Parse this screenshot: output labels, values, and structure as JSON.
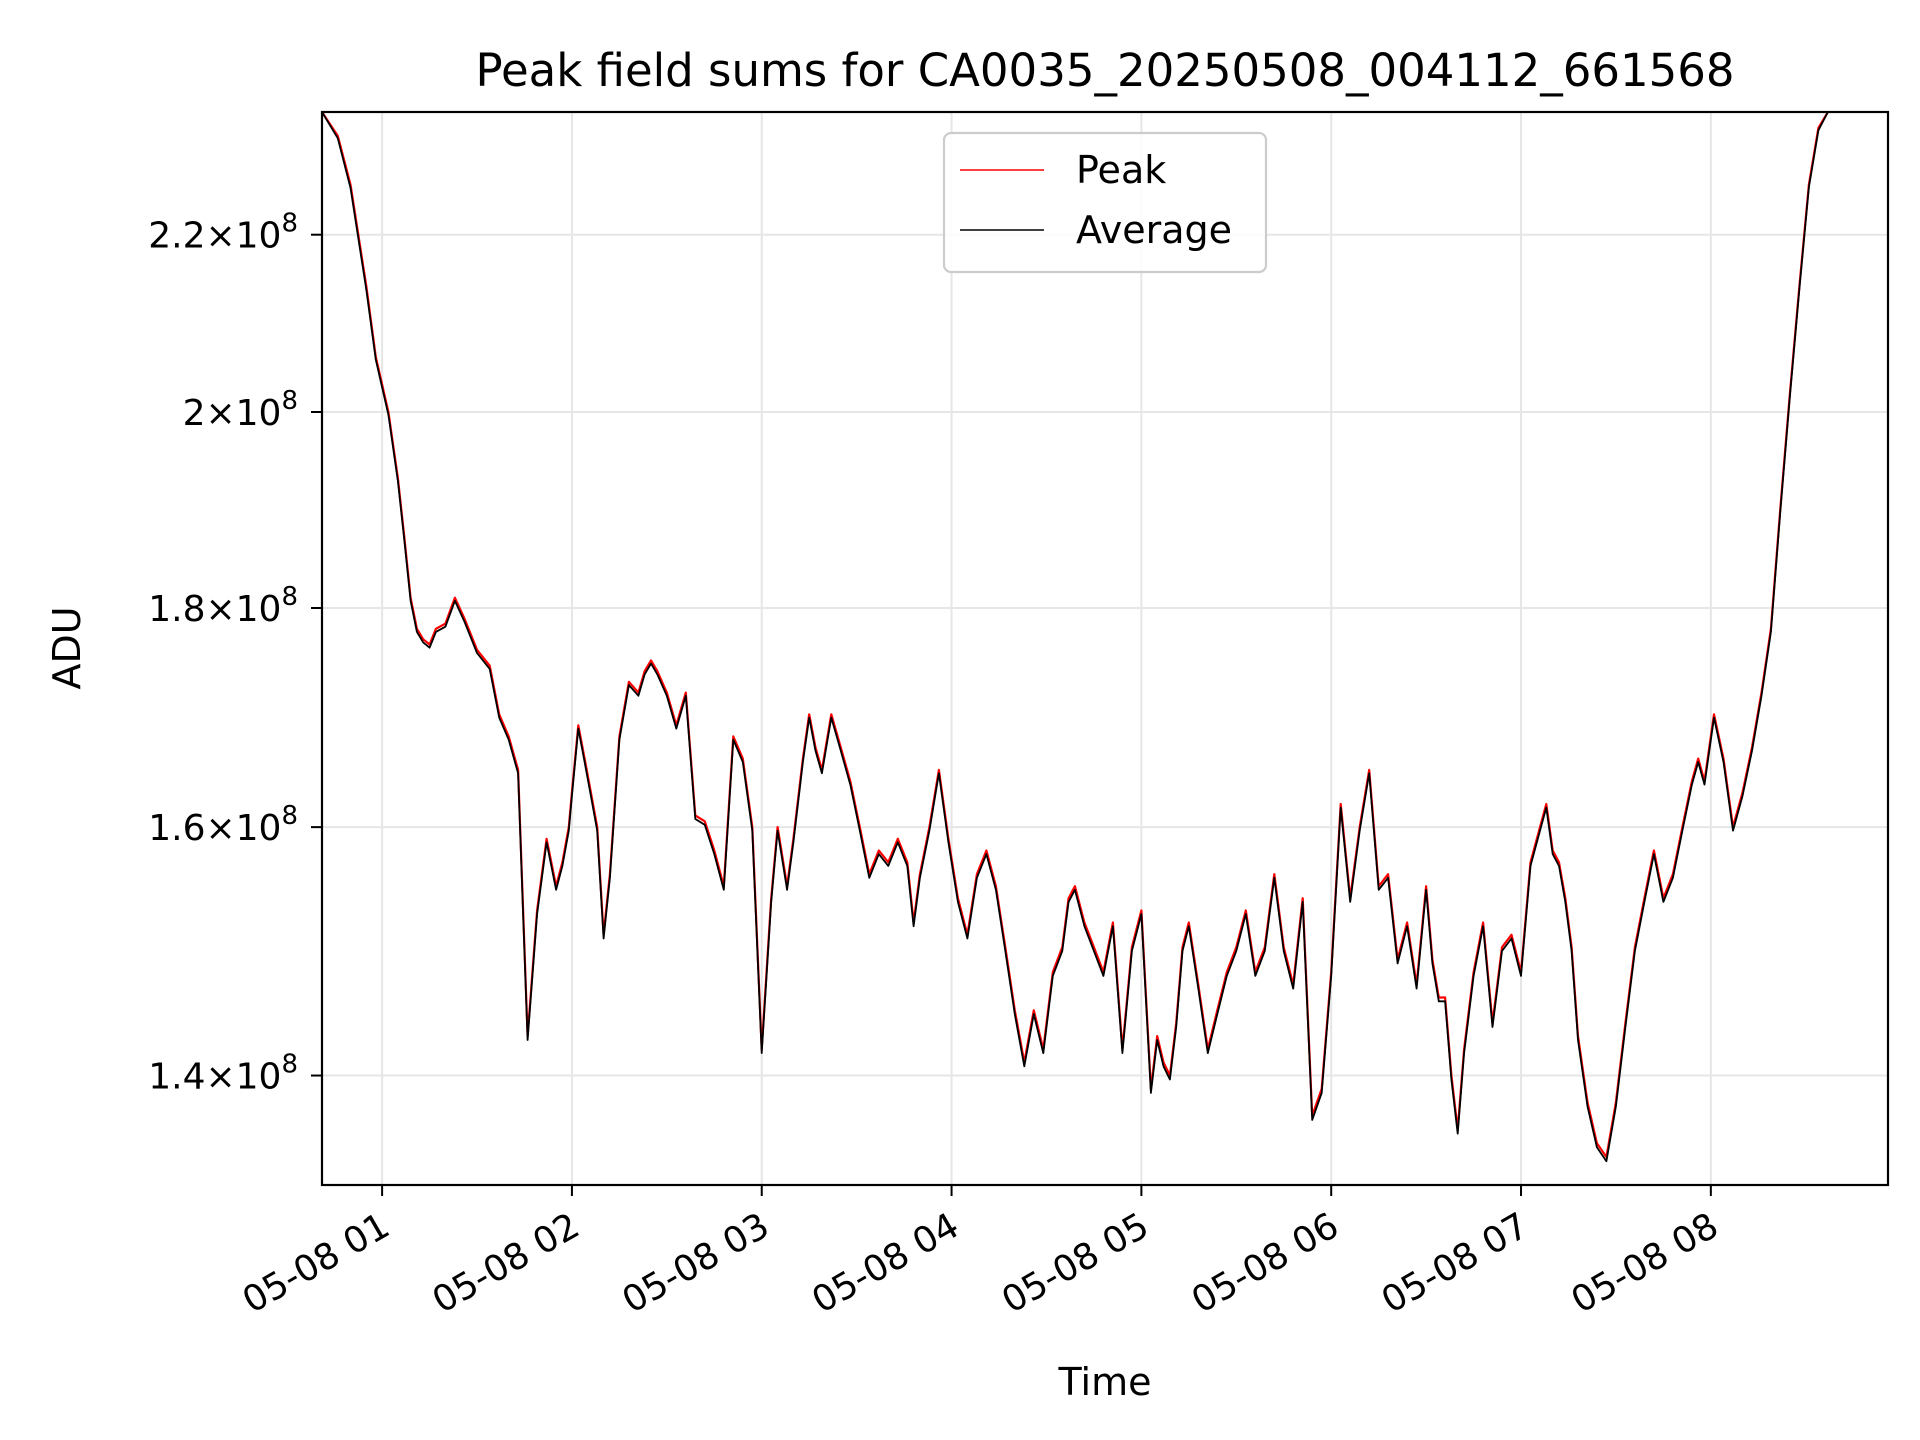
{
  "chart_data": {
    "type": "line",
    "title": "Peak field sums for CA0035_20250508_004112_661568",
    "xlabel": "Time",
    "ylabel": "ADU",
    "x_axis_type": "time",
    "x_range": [
      "2025-05-08 00:41",
      "2025-05-08 08:56"
    ],
    "y_scale": "log",
    "ylim": [
      132000000,
      235000000
    ],
    "grid": true,
    "legend_position": "upper center",
    "colors": {
      "Peak": "#ff0000",
      "Average": "#000000"
    },
    "x_ticks": [
      "05-08 01",
      "05-08 02",
      "05-08 03",
      "05-08 04",
      "05-08 05",
      "05-08 06",
      "05-08 07",
      "05-08 08"
    ],
    "y_ticks": [
      {
        "value": 140000000,
        "mantissa": "1.4",
        "exponent": "8"
      },
      {
        "value": 160000000,
        "mantissa": "1.6",
        "exponent": "8"
      },
      {
        "value": 180000000,
        "mantissa": "1.8",
        "exponent": "8"
      },
      {
        "value": 200000000,
        "mantissa": "2",
        "exponent": "8"
      },
      {
        "value": 220000000,
        "mantissa": "2.2",
        "exponent": "8"
      }
    ],
    "series": [
      {
        "name": "Peak",
        "color": "#ff0000"
      },
      {
        "name": "Average",
        "color": "#000000"
      }
    ],
    "x": [
      "00:41",
      "00:46",
      "00:50",
      "00:55",
      "00:58",
      "01:02",
      "01:05",
      "01:07",
      "01:09",
      "01:11",
      "01:13",
      "01:15",
      "01:17",
      "01:20",
      "01:23",
      "01:26",
      "01:30",
      "01:34",
      "01:37",
      "01:40",
      "01:43",
      "01:46",
      "01:49",
      "01:52",
      "01:55",
      "01:57",
      "01:59",
      "02:00",
      "02:02",
      "02:04",
      "02:06",
      "02:08",
      "02:10",
      "02:12",
      "02:15",
      "02:18",
      "02:21",
      "02:23",
      "02:25",
      "02:27",
      "02:30",
      "02:33",
      "02:36",
      "02:39",
      "02:42",
      "02:45",
      "02:48",
      "02:51",
      "02:54",
      "02:57",
      "03:00",
      "03:03",
      "03:05",
      "03:08",
      "03:10",
      "03:13",
      "03:15",
      "03:17",
      "03:19",
      "03:22",
      "03:25",
      "03:28",
      "03:31",
      "03:34",
      "03:37",
      "03:40",
      "03:43",
      "03:46",
      "03:48",
      "03:50",
      "03:53",
      "03:56",
      "03:59",
      "04:02",
      "04:05",
      "04:08",
      "04:11",
      "04:14",
      "04:17",
      "04:20",
      "04:23",
      "04:26",
      "04:29",
      "04:32",
      "04:35",
      "04:37",
      "04:39",
      "04:42",
      "04:45",
      "04:48",
      "04:51",
      "04:54",
      "04:57",
      "05:00",
      "05:03",
      "05:05",
      "05:07",
      "05:09",
      "05:11",
      "05:13",
      "05:15",
      "05:18",
      "05:21",
      "05:24",
      "05:27",
      "05:30",
      "05:33",
      "05:36",
      "05:39",
      "05:42",
      "05:45",
      "05:48",
      "05:51",
      "05:54",
      "05:57",
      "06:00",
      "06:03",
      "06:06",
      "06:09",
      "06:12",
      "06:15",
      "06:18",
      "06:21",
      "06:24",
      "06:27",
      "06:30",
      "06:32",
      "06:34",
      "06:36",
      "06:38",
      "06:40",
      "06:42",
      "06:45",
      "06:48",
      "06:51",
      "06:54",
      "06:57",
      "07:00",
      "07:03",
      "07:06",
      "07:08",
      "07:10",
      "07:12",
      "07:14",
      "07:16",
      "07:18",
      "07:21",
      "07:24",
      "07:27",
      "07:30",
      "07:33",
      "07:36",
      "07:39",
      "07:42",
      "07:45",
      "07:48",
      "07:51",
      "07:54",
      "07:56",
      "07:58",
      "08:01",
      "08:04",
      "08:07",
      "08:10",
      "08:13",
      "08:16",
      "08:19",
      "08:22",
      "08:25",
      "08:28",
      "08:31",
      "08:34",
      "08:37",
      "08:40",
      "08:43",
      "08:46",
      "08:48",
      "08:50",
      "08:52",
      "08:54",
      "08:56"
    ],
    "peak": [
      235000000,
      232000000,
      226000000,
      214000000,
      206000000,
      200000000,
      193000000,
      187000000,
      181000000,
      178000000,
      177000000,
      176500000,
      178000000,
      178500000,
      181000000,
      179000000,
      176000000,
      174500000,
      170000000,
      168000000,
      165000000,
      143000000,
      153000000,
      159000000,
      155000000,
      157000000,
      160000000,
      163000000,
      169000000,
      166000000,
      163000000,
      160000000,
      151000000,
      156000000,
      168000000,
      173000000,
      172000000,
      174000000,
      175000000,
      174000000,
      172000000,
      169000000,
      172000000,
      161000000,
      160500000,
      158000000,
      155000000,
      168000000,
      166000000,
      160000000,
      142000000,
      154000000,
      160000000,
      155000000,
      159000000,
      166000000,
      170000000,
      167000000,
      165000000,
      170000000,
      167000000,
      164000000,
      160000000,
      156000000,
      158000000,
      157000000,
      159000000,
      157000000,
      152000000,
      156000000,
      160000000,
      165000000,
      159000000,
      154000000,
      151000000,
      156000000,
      158000000,
      155000000,
      150000000,
      145000000,
      141000000,
      145000000,
      142000000,
      148000000,
      150000000,
      154000000,
      155000000,
      152000000,
      150000000,
      148000000,
      152000000,
      142000000,
      150000000,
      153000000,
      139000000,
      143000000,
      141000000,
      140000000,
      144000000,
      150000000,
      152000000,
      147000000,
      142000000,
      145000000,
      148000000,
      150000000,
      153000000,
      148000000,
      150000000,
      156000000,
      150000000,
      147000000,
      154000000,
      137000000,
      139000000,
      148000000,
      162000000,
      154000000,
      160000000,
      165000000,
      155000000,
      156000000,
      149000000,
      152000000,
      147000000,
      155000000,
      149000000,
      146000000,
      146000000,
      140000000,
      136000000,
      142000000,
      148000000,
      152000000,
      144000000,
      150000000,
      151000000,
      148000000,
      157000000,
      160000000,
      162000000,
      158000000,
      157000000,
      154000000,
      150000000,
      143000000,
      138000000,
      135000000,
      134000000,
      138000000,
      144000000,
      150000000,
      154000000,
      158000000,
      154000000,
      156000000,
      160000000,
      164000000,
      166000000,
      164000000,
      170000000,
      166000000,
      160000000,
      163000000,
      167000000,
      172000000,
      178000000,
      190000000,
      202000000,
      214000000,
      226000000,
      233000000,
      235000000
    ],
    "average": [
      235000000,
      231700000,
      225600000,
      213600000,
      205700000,
      199700000,
      192700000,
      186700000,
      180700000,
      177700000,
      176700000,
      176200000,
      177700000,
      178200000,
      180700000,
      178700000,
      175700000,
      174200000,
      169700000,
      167700000,
      164700000,
      142700000,
      152700000,
      158700000,
      154700000,
      156700000,
      159700000,
      162700000,
      168700000,
      165700000,
      162700000,
      159700000,
      150700000,
      155700000,
      167700000,
      172700000,
      171700000,
      173700000,
      174700000,
      173700000,
      171700000,
      168700000,
      171700000,
      160700000,
      160200000,
      157700000,
      154700000,
      167700000,
      165700000,
      159700000,
      141700000,
      153700000,
      159700000,
      154700000,
      158700000,
      165700000,
      169700000,
      166700000,
      164700000,
      169700000,
      166700000,
      163700000,
      159700000,
      155700000,
      157700000,
      156700000,
      158700000,
      156700000,
      151700000,
      155700000,
      159700000,
      164700000,
      158700000,
      153700000,
      150700000,
      155700000,
      157700000,
      154700000,
      149700000,
      144700000,
      140700000,
      144700000,
      141700000,
      147700000,
      149700000,
      153700000,
      154700000,
      151700000,
      149700000,
      147700000,
      151700000,
      141700000,
      149700000,
      152700000,
      138700000,
      142700000,
      140700000,
      139700000,
      143700000,
      149700000,
      151700000,
      146700000,
      141700000,
      144700000,
      147700000,
      149700000,
      152700000,
      147700000,
      149700000,
      155700000,
      149700000,
      146700000,
      153700000,
      136700000,
      138700000,
      147700000,
      161700000,
      153700000,
      159700000,
      164700000,
      154700000,
      155700000,
      148700000,
      151700000,
      146700000,
      154700000,
      148700000,
      145700000,
      145700000,
      139700000,
      135700000,
      141700000,
      147700000,
      151700000,
      143700000,
      149700000,
      150700000,
      147700000,
      156700000,
      159700000,
      161700000,
      157700000,
      156700000,
      153700000,
      149700000,
      142700000,
      137700000,
      134700000,
      133700000,
      137700000,
      143700000,
      149700000,
      153700000,
      157700000,
      153700000,
      155700000,
      159700000,
      163700000,
      165700000,
      163700000,
      169700000,
      165700000,
      159700000,
      162700000,
      166700000,
      171700000,
      177700000,
      189700000,
      201700000,
      213700000,
      225700000,
      232700000,
      235000000
    ]
  }
}
